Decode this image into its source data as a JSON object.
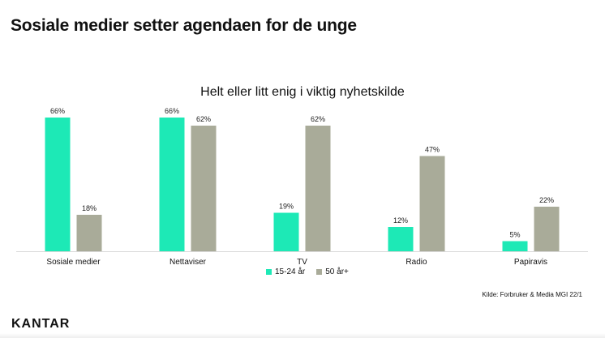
{
  "slide": {
    "title": "Sosiale medier setter agendaen for de unge",
    "source": "Kilde: Forbruker & Media MGI 22/1",
    "logo": "KANTAR"
  },
  "chart_data": {
    "type": "bar",
    "title": "Helt eller litt enig i viktig nyhetskilde",
    "categories": [
      "Sosiale medier",
      "Nettaviser",
      "TV",
      "Radio",
      "Papiravis"
    ],
    "series": [
      {
        "name": "15-24 år",
        "values": [
          66,
          66,
          19,
          12,
          5
        ],
        "color": "#1de9b6"
      },
      {
        "name": "50 år+",
        "values": [
          18,
          62,
          62,
          47,
          22
        ],
        "color": "#a9ab99"
      }
    ],
    "value_suffix": "%",
    "ylim": [
      0,
      70
    ],
    "grid": false,
    "legend": "bottom",
    "xlabel": "",
    "ylabel": ""
  }
}
